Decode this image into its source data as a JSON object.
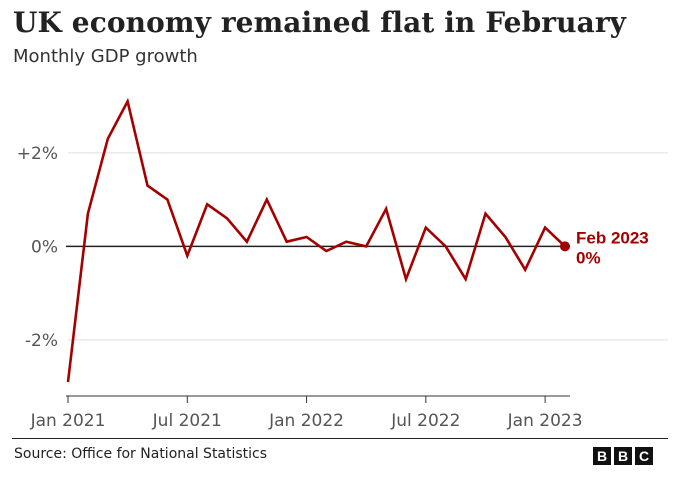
{
  "header": {
    "title": "UK economy remained flat in February",
    "subtitle": "Monthly GDP growth"
  },
  "footer": {
    "source": "Source: Office for National Statistics",
    "logo": [
      "B",
      "B",
      "C"
    ]
  },
  "colors": {
    "line": "#a50000",
    "grid": "#dddddd",
    "zero_line": "#222222",
    "axis_text": "#555555"
  },
  "chart_data": {
    "type": "line",
    "title": "UK economy remained flat in February",
    "subtitle": "Monthly GDP growth",
    "xlabel": "",
    "ylabel": "",
    "x": [
      "Jan 2021",
      "Feb 2021",
      "Mar 2021",
      "Apr 2021",
      "May 2021",
      "Jun 2021",
      "Jul 2021",
      "Aug 2021",
      "Sep 2021",
      "Oct 2021",
      "Nov 2021",
      "Dec 2021",
      "Jan 2022",
      "Feb 2022",
      "Mar 2022",
      "Apr 2022",
      "May 2022",
      "Jun 2022",
      "Jul 2022",
      "Aug 2022",
      "Sep 2022",
      "Oct 2022",
      "Nov 2022",
      "Dec 2022",
      "Jan 2023",
      "Feb 2023"
    ],
    "series": [
      {
        "values": [
          -2.9,
          0.7,
          2.3,
          3.1,
          1.3,
          1.0,
          -0.2,
          0.9,
          0.6,
          0.1,
          1.0,
          0.1,
          0.2,
          -0.1,
          0.1,
          0.0,
          0.8,
          -0.7,
          0.4,
          0.0,
          -0.7,
          0.7,
          0.2,
          -0.5,
          0.4,
          0.0
        ]
      }
    ],
    "ylim": [
      -3.2,
      3.6
    ],
    "y_ticks": [
      2,
      0,
      -2
    ],
    "y_tick_labels": [
      "+2%",
      "0%",
      "-2%"
    ],
    "x_tick_labels": [
      "Jan 2021",
      "Jul 2021",
      "Jan 2022",
      "Jul 2022",
      "Jan 2023"
    ],
    "x_tick_index": [
      0,
      6,
      12,
      18,
      24
    ],
    "grid": true,
    "annotation": {
      "index": 25,
      "label_period": "Feb 2023",
      "label_value": "0%"
    }
  }
}
